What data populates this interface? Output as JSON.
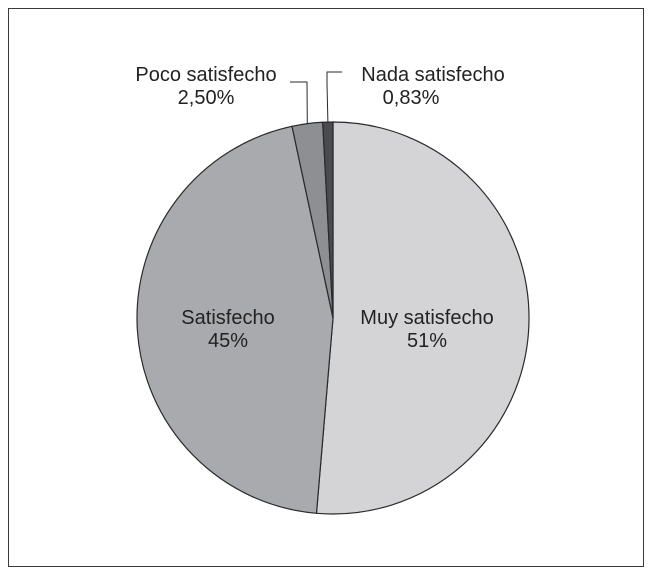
{
  "chart_data": {
    "type": "pie",
    "slices": [
      {
        "label": "Muy satisfecho",
        "value": 51,
        "value_label": "51%",
        "color": "#d4d4d6"
      },
      {
        "label": "Satisfecho",
        "value": 45,
        "value_label": "45%",
        "color": "#a9aaad"
      },
      {
        "label": "Poco satisfecho",
        "value": 2.5,
        "value_label": "2,50%",
        "color": "#8e8f92"
      },
      {
        "label": "Nada satisfecho",
        "value": 0.83,
        "value_label": "0,83%",
        "color": "#4a4b4e"
      }
    ],
    "title": "",
    "legend": "none"
  }
}
